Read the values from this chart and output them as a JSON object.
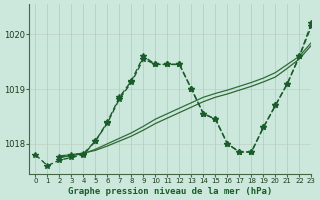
{
  "title": "Graphe pression niveau de la mer (hPa)",
  "bg_color": "#cce8dd",
  "grid_color": "#99bbaa",
  "xlim": [
    -0.5,
    23
  ],
  "ylim": [
    1017.45,
    1020.55
  ],
  "yticks": [
    1018,
    1019,
    1020
  ],
  "xticks": [
    0,
    1,
    2,
    3,
    4,
    5,
    6,
    7,
    8,
    9,
    10,
    11,
    12,
    13,
    14,
    15,
    16,
    17,
    18,
    19,
    20,
    21,
    22,
    23
  ],
  "series": [
    {
      "x": [
        0,
        1,
        2,
        3,
        4,
        5,
        6,
        7,
        8,
        9,
        10,
        11,
        12,
        13,
        14,
        15,
        16,
        17,
        18,
        19,
        20,
        21,
        22,
        23
      ],
      "y": [
        1017.8,
        1017.6,
        1017.7,
        1017.75,
        1017.8,
        1018.05,
        1018.4,
        1018.85,
        1019.15,
        1019.6,
        1019.45,
        1019.45,
        1019.45,
        1019.0,
        1018.55,
        1018.45,
        1018.0,
        1017.85,
        1017.85,
        1018.3,
        1018.7,
        1019.1,
        1019.6,
        1020.2
      ],
      "marker": true,
      "color": "#1a5c2a",
      "lw": 1.0,
      "linestyle": "--"
    },
    {
      "x": [
        2,
        3,
        4,
        5,
        6,
        7,
        8,
        9,
        10,
        11,
        12,
        13,
        14,
        15,
        16,
        17,
        18,
        19,
        20,
        21,
        22,
        23
      ],
      "y": [
        1017.75,
        1017.78,
        1017.82,
        1017.9,
        1018.0,
        1018.1,
        1018.2,
        1018.32,
        1018.45,
        1018.55,
        1018.65,
        1018.75,
        1018.85,
        1018.92,
        1018.98,
        1019.05,
        1019.12,
        1019.2,
        1019.3,
        1019.45,
        1019.6,
        1019.85
      ],
      "marker": false,
      "color": "#2d6e3a",
      "lw": 0.9,
      "linestyle": "-"
    },
    {
      "x": [
        2,
        3,
        4,
        5,
        6,
        7,
        8,
        9,
        10,
        11,
        12,
        13,
        14,
        15,
        16,
        17,
        18,
        19,
        20,
        21,
        22,
        23
      ],
      "y": [
        1017.78,
        1017.8,
        1017.83,
        1017.88,
        1017.96,
        1018.05,
        1018.14,
        1018.25,
        1018.37,
        1018.47,
        1018.57,
        1018.67,
        1018.77,
        1018.85,
        1018.91,
        1018.98,
        1019.05,
        1019.13,
        1019.22,
        1019.38,
        1019.55,
        1019.8
      ],
      "marker": false,
      "color": "#336633",
      "lw": 0.9,
      "linestyle": "-"
    },
    {
      "x": [
        2,
        3,
        4,
        5,
        6,
        7,
        8,
        9,
        10,
        11,
        12,
        13,
        14,
        15,
        16,
        17,
        18,
        19,
        20,
        21,
        22,
        23
      ],
      "y": [
        1017.75,
        1017.8,
        1017.82,
        1018.05,
        1018.38,
        1018.82,
        1019.12,
        1019.55,
        1019.45,
        1019.45,
        1019.45,
        1019.0,
        1018.55,
        1018.45,
        1018.0,
        1017.85,
        1017.85,
        1018.3,
        1018.7,
        1019.1,
        1019.6,
        1020.15
      ],
      "marker": true,
      "color": "#1a5c2a",
      "lw": 1.0,
      "linestyle": "--"
    }
  ]
}
